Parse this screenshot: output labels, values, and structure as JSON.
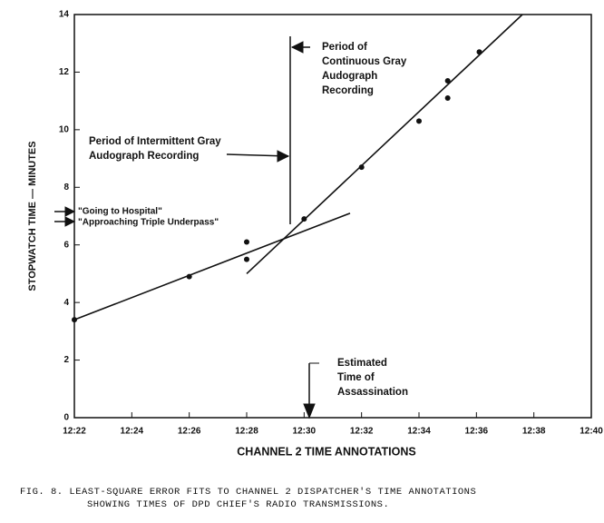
{
  "chart_data": {
    "type": "scatter",
    "x_label": "CHANNEL 2 TIME ANNOTATIONS",
    "y_label": "STOPWATCH TIME — MINUTES",
    "caption": [
      "FIG. 8.  LEAST-SQUARE ERROR FITS TO CHANNEL 2 DISPATCHER'S TIME ANNOTATIONS",
      "SHOWING TIMES OF DPD CHIEF'S RADIO TRANSMISSIONS."
    ],
    "x": [
      22,
      26,
      28,
      28,
      30,
      32,
      34,
      35,
      35,
      36.1
    ],
    "values": [
      3.4,
      4.9,
      6.1,
      5.5,
      6.9,
      8.7,
      10.3,
      11.7,
      11.1,
      12.7
    ],
    "color": "#111111",
    "fit_lines": [
      {
        "x": [
          22,
          31.6
        ],
        "y": [
          3.4,
          7.1
        ]
      },
      {
        "x": [
          28,
          37.6
        ],
        "y": [
          5.0,
          14.0
        ]
      }
    ],
    "xlim": [
      22,
      40
    ],
    "xticks": [
      {
        "value": 22,
        "label": "12:22"
      },
      {
        "value": 24,
        "label": "12:24"
      },
      {
        "value": 26,
        "label": "12:26"
      },
      {
        "value": 28,
        "label": "12:28"
      },
      {
        "value": 30,
        "label": "12:30"
      },
      {
        "value": 32,
        "label": "12:32"
      },
      {
        "value": 34,
        "label": "12:34"
      },
      {
        "value": 36,
        "label": "12:36"
      },
      {
        "value": 38,
        "label": "12:38"
      },
      {
        "value": 40,
        "label": "12:40"
      }
    ],
    "ylim": [
      0,
      14
    ],
    "yticks": [
      0,
      2,
      4,
      6,
      8,
      10,
      12,
      14
    ],
    "annotations": [
      {
        "lines": [
          "Period of",
          "Continuous Gray",
          "Audograph",
          "Recording"
        ]
      },
      {
        "lines": [
          "Period of Intermittent Gray",
          "Audograph Recording"
        ]
      },
      {
        "lines": [
          "\"Going to Hospital\"",
          "\"Approaching Triple Underpass\""
        ]
      },
      {
        "lines": [
          "Estimated",
          "Time of",
          "Assassination"
        ]
      }
    ]
  }
}
